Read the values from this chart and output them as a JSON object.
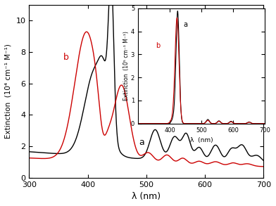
{
  "main": {
    "xlim": [
      300,
      700
    ],
    "ylim": [
      0,
      11
    ],
    "xlabel": "λ (nm)",
    "ylabel": "Extinction  (10⁴ cm⁻¹ M⁻¹)",
    "label_a": "a",
    "label_b": "b",
    "color_a": "#000000",
    "color_b": "#cc0000",
    "xticks": [
      300,
      400,
      500,
      600,
      700
    ],
    "yticks": [
      0,
      2,
      4,
      6,
      8,
      10
    ]
  },
  "inset": {
    "xlim": [
      300,
      700
    ],
    "ylim": [
      0,
      5
    ],
    "xlabel": "λ  (nm)",
    "ylabel": "Extinction  (10⁵ cm⁻¹ M⁻¹)",
    "label_a": "a",
    "label_b": "b",
    "color_a": "#000000",
    "color_b": "#cc0000",
    "yticks": [
      0,
      1,
      2,
      3,
      4,
      5
    ],
    "xticks": [
      400,
      500,
      600,
      700
    ]
  }
}
